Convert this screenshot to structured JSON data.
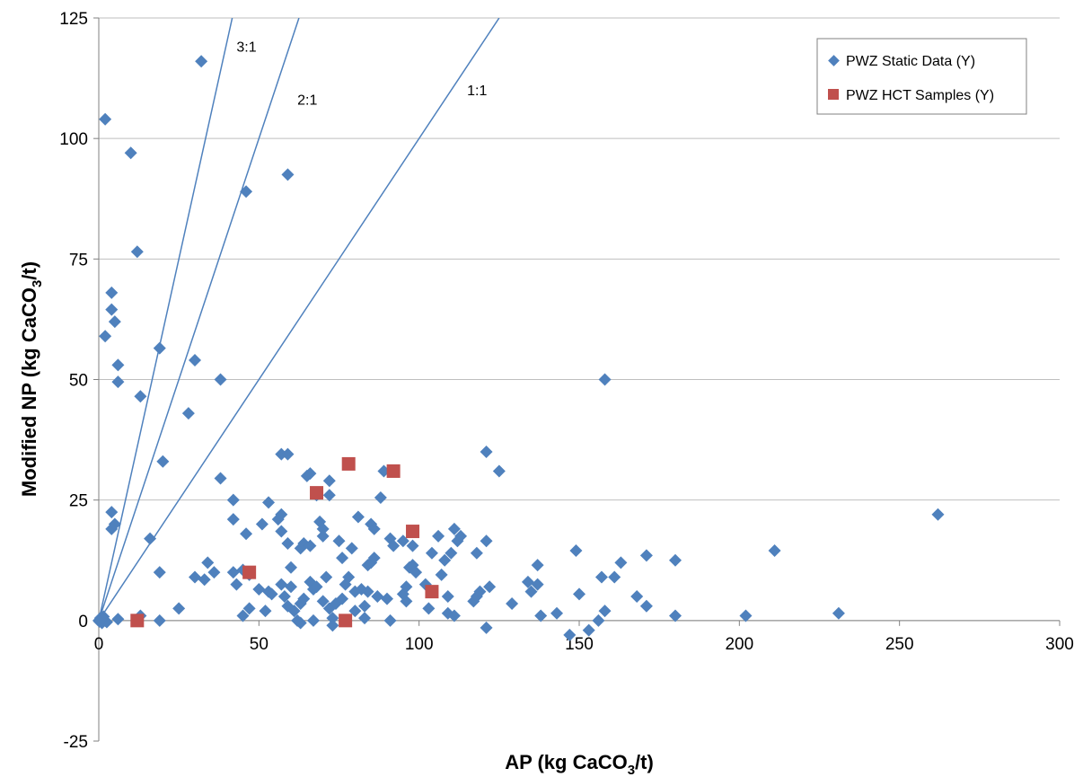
{
  "chart_data": {
    "type": "scatter",
    "title": "",
    "xlabel": {
      "prefix": "AP (kg CaCO",
      "sub": "3",
      "suffix": "/t)"
    },
    "ylabel": {
      "prefix": "Modified NP (kg CaCO",
      "sub": "3",
      "suffix": "/t)"
    },
    "xlim": [
      0,
      300
    ],
    "ylim": [
      -25,
      125
    ],
    "x_ticks": [
      0,
      50,
      100,
      150,
      200,
      250,
      300
    ],
    "y_ticks": [
      -25,
      0,
      25,
      50,
      75,
      100,
      125
    ],
    "grid": {
      "horizontal": true,
      "vertical": false
    },
    "legend_position": "top-right",
    "ratio_lines": [
      {
        "label": "3:1",
        "slope": 3
      },
      {
        "label": "2:1",
        "slope": 2
      },
      {
        "label": "1:1",
        "slope": 1
      }
    ],
    "series": [
      {
        "name": "PWZ Static Data (Y)",
        "marker": "diamond",
        "color": "#4F81BD",
        "points": [
          [
            0,
            0
          ],
          [
            0.5,
            0.5
          ],
          [
            1,
            -0.5
          ],
          [
            1.5,
            0.8
          ],
          [
            2,
            0
          ],
          [
            2.5,
            -0.3
          ],
          [
            1,
            0.4
          ],
          [
            0.2,
            -0.2
          ],
          [
            2,
            104
          ],
          [
            10,
            97
          ],
          [
            12,
            76.5
          ],
          [
            4,
            68
          ],
          [
            4,
            64.5
          ],
          [
            5,
            62
          ],
          [
            2,
            59
          ],
          [
            19,
            56.5
          ],
          [
            6,
            53
          ],
          [
            6,
            49.5
          ],
          [
            13,
            46.5
          ],
          [
            4,
            22.5
          ],
          [
            4,
            19
          ],
          [
            5,
            20
          ],
          [
            6,
            0.3
          ],
          [
            13,
            1
          ],
          [
            32,
            116
          ],
          [
            46,
            89
          ],
          [
            59,
            92.5
          ],
          [
            30,
            54
          ],
          [
            38,
            50
          ],
          [
            28,
            43
          ],
          [
            20,
            33
          ],
          [
            16,
            17
          ],
          [
            19,
            10
          ],
          [
            19,
            0
          ],
          [
            25,
            2.5
          ],
          [
            38,
            29.5
          ],
          [
            42,
            25
          ],
          [
            42,
            21
          ],
          [
            36,
            10
          ],
          [
            34,
            12
          ],
          [
            33,
            8.5
          ],
          [
            30,
            9
          ],
          [
            42,
            10
          ],
          [
            43,
            7.5
          ],
          [
            46,
            18
          ],
          [
            45,
            10.5
          ],
          [
            45,
            1
          ],
          [
            47,
            2.5
          ],
          [
            47,
            9.5
          ],
          [
            50,
            6.5
          ],
          [
            51,
            20
          ],
          [
            52,
            2
          ],
          [
            53,
            24.5
          ],
          [
            53,
            6
          ],
          [
            54,
            5.5
          ],
          [
            57,
            34.5
          ],
          [
            59,
            34.5
          ],
          [
            56,
            21
          ],
          [
            57,
            22
          ],
          [
            57,
            18.5
          ],
          [
            57,
            7.5
          ],
          [
            58,
            5
          ],
          [
            59,
            3
          ],
          [
            59,
            16
          ],
          [
            60,
            11
          ],
          [
            60,
            7
          ],
          [
            61,
            2
          ],
          [
            62,
            0
          ],
          [
            63,
            15
          ],
          [
            63,
            -0.5
          ],
          [
            63,
            3.5
          ],
          [
            64,
            4.5
          ],
          [
            64,
            16
          ],
          [
            65,
            30
          ],
          [
            66,
            15.5
          ],
          [
            66,
            30.5
          ],
          [
            66,
            8
          ],
          [
            67,
            6.5
          ],
          [
            67,
            0
          ],
          [
            68,
            26
          ],
          [
            68,
            7
          ],
          [
            69,
            20.5
          ],
          [
            70,
            4
          ],
          [
            70,
            19
          ],
          [
            70,
            17.5
          ],
          [
            71,
            9
          ],
          [
            72,
            29
          ],
          [
            72,
            26
          ],
          [
            72,
            2.5
          ],
          [
            73,
            -1
          ],
          [
            73,
            0.5
          ],
          [
            74,
            3.5
          ],
          [
            75,
            16.5
          ],
          [
            76,
            4.5
          ],
          [
            76,
            13
          ],
          [
            77,
            7.5
          ],
          [
            78,
            9
          ],
          [
            79,
            15
          ],
          [
            80,
            6
          ],
          [
            80,
            2
          ],
          [
            81,
            21.5
          ],
          [
            82,
            6.5
          ],
          [
            83,
            3
          ],
          [
            83,
            0.5
          ],
          [
            84,
            6
          ],
          [
            84,
            11.5
          ],
          [
            85,
            12
          ],
          [
            85,
            20
          ],
          [
            86,
            19
          ],
          [
            86,
            13
          ],
          [
            87,
            5
          ],
          [
            88,
            25.5
          ],
          [
            89,
            31
          ],
          [
            90,
            4.5
          ],
          [
            91,
            0
          ],
          [
            91,
            17
          ],
          [
            92,
            15.5
          ],
          [
            95,
            5.5
          ],
          [
            95,
            16.5
          ],
          [
            96,
            7
          ],
          [
            96,
            4
          ],
          [
            97,
            11
          ],
          [
            98,
            11.5
          ],
          [
            98,
            15.5
          ],
          [
            99,
            10
          ],
          [
            102,
            7.5
          ],
          [
            103,
            2.5
          ],
          [
            104,
            14
          ],
          [
            106,
            17.5
          ],
          [
            107,
            9.5
          ],
          [
            108,
            12.5
          ],
          [
            109,
            5
          ],
          [
            109,
            1.5
          ],
          [
            110,
            14
          ],
          [
            111,
            19
          ],
          [
            111,
            1
          ],
          [
            112,
            16.5
          ],
          [
            113,
            17.5
          ],
          [
            117,
            4
          ],
          [
            118,
            5
          ],
          [
            118,
            14
          ],
          [
            119,
            6
          ],
          [
            121,
            35
          ],
          [
            121,
            16.5
          ],
          [
            121,
            -1.5
          ],
          [
            122,
            7
          ],
          [
            125,
            31
          ],
          [
            129,
            3.5
          ],
          [
            134,
            8
          ],
          [
            135,
            6
          ],
          [
            137,
            11.5
          ],
          [
            137,
            7.5
          ],
          [
            138,
            1
          ],
          [
            143,
            1.5
          ],
          [
            147,
            -3
          ],
          [
            149,
            14.5
          ],
          [
            150,
            5.5
          ],
          [
            153,
            -2
          ],
          [
            156,
            0
          ],
          [
            157,
            9
          ],
          [
            158,
            2
          ],
          [
            158,
            50
          ],
          [
            161,
            9
          ],
          [
            163,
            12
          ],
          [
            168,
            5
          ],
          [
            171,
            13.5
          ],
          [
            171,
            3
          ],
          [
            180,
            12.5
          ],
          [
            180,
            1
          ],
          [
            202,
            1
          ],
          [
            211,
            14.5
          ],
          [
            231,
            1.5
          ],
          [
            262,
            22
          ]
        ]
      },
      {
        "name": "PWZ HCT Samples (Y)",
        "marker": "square",
        "color": "#C0504D",
        "points": [
          [
            12,
            0
          ],
          [
            47,
            10
          ],
          [
            68,
            26.5
          ],
          [
            78,
            32.5
          ],
          [
            77,
            0
          ],
          [
            92,
            31
          ],
          [
            98,
            18.5
          ],
          [
            104,
            6
          ]
        ]
      }
    ]
  }
}
